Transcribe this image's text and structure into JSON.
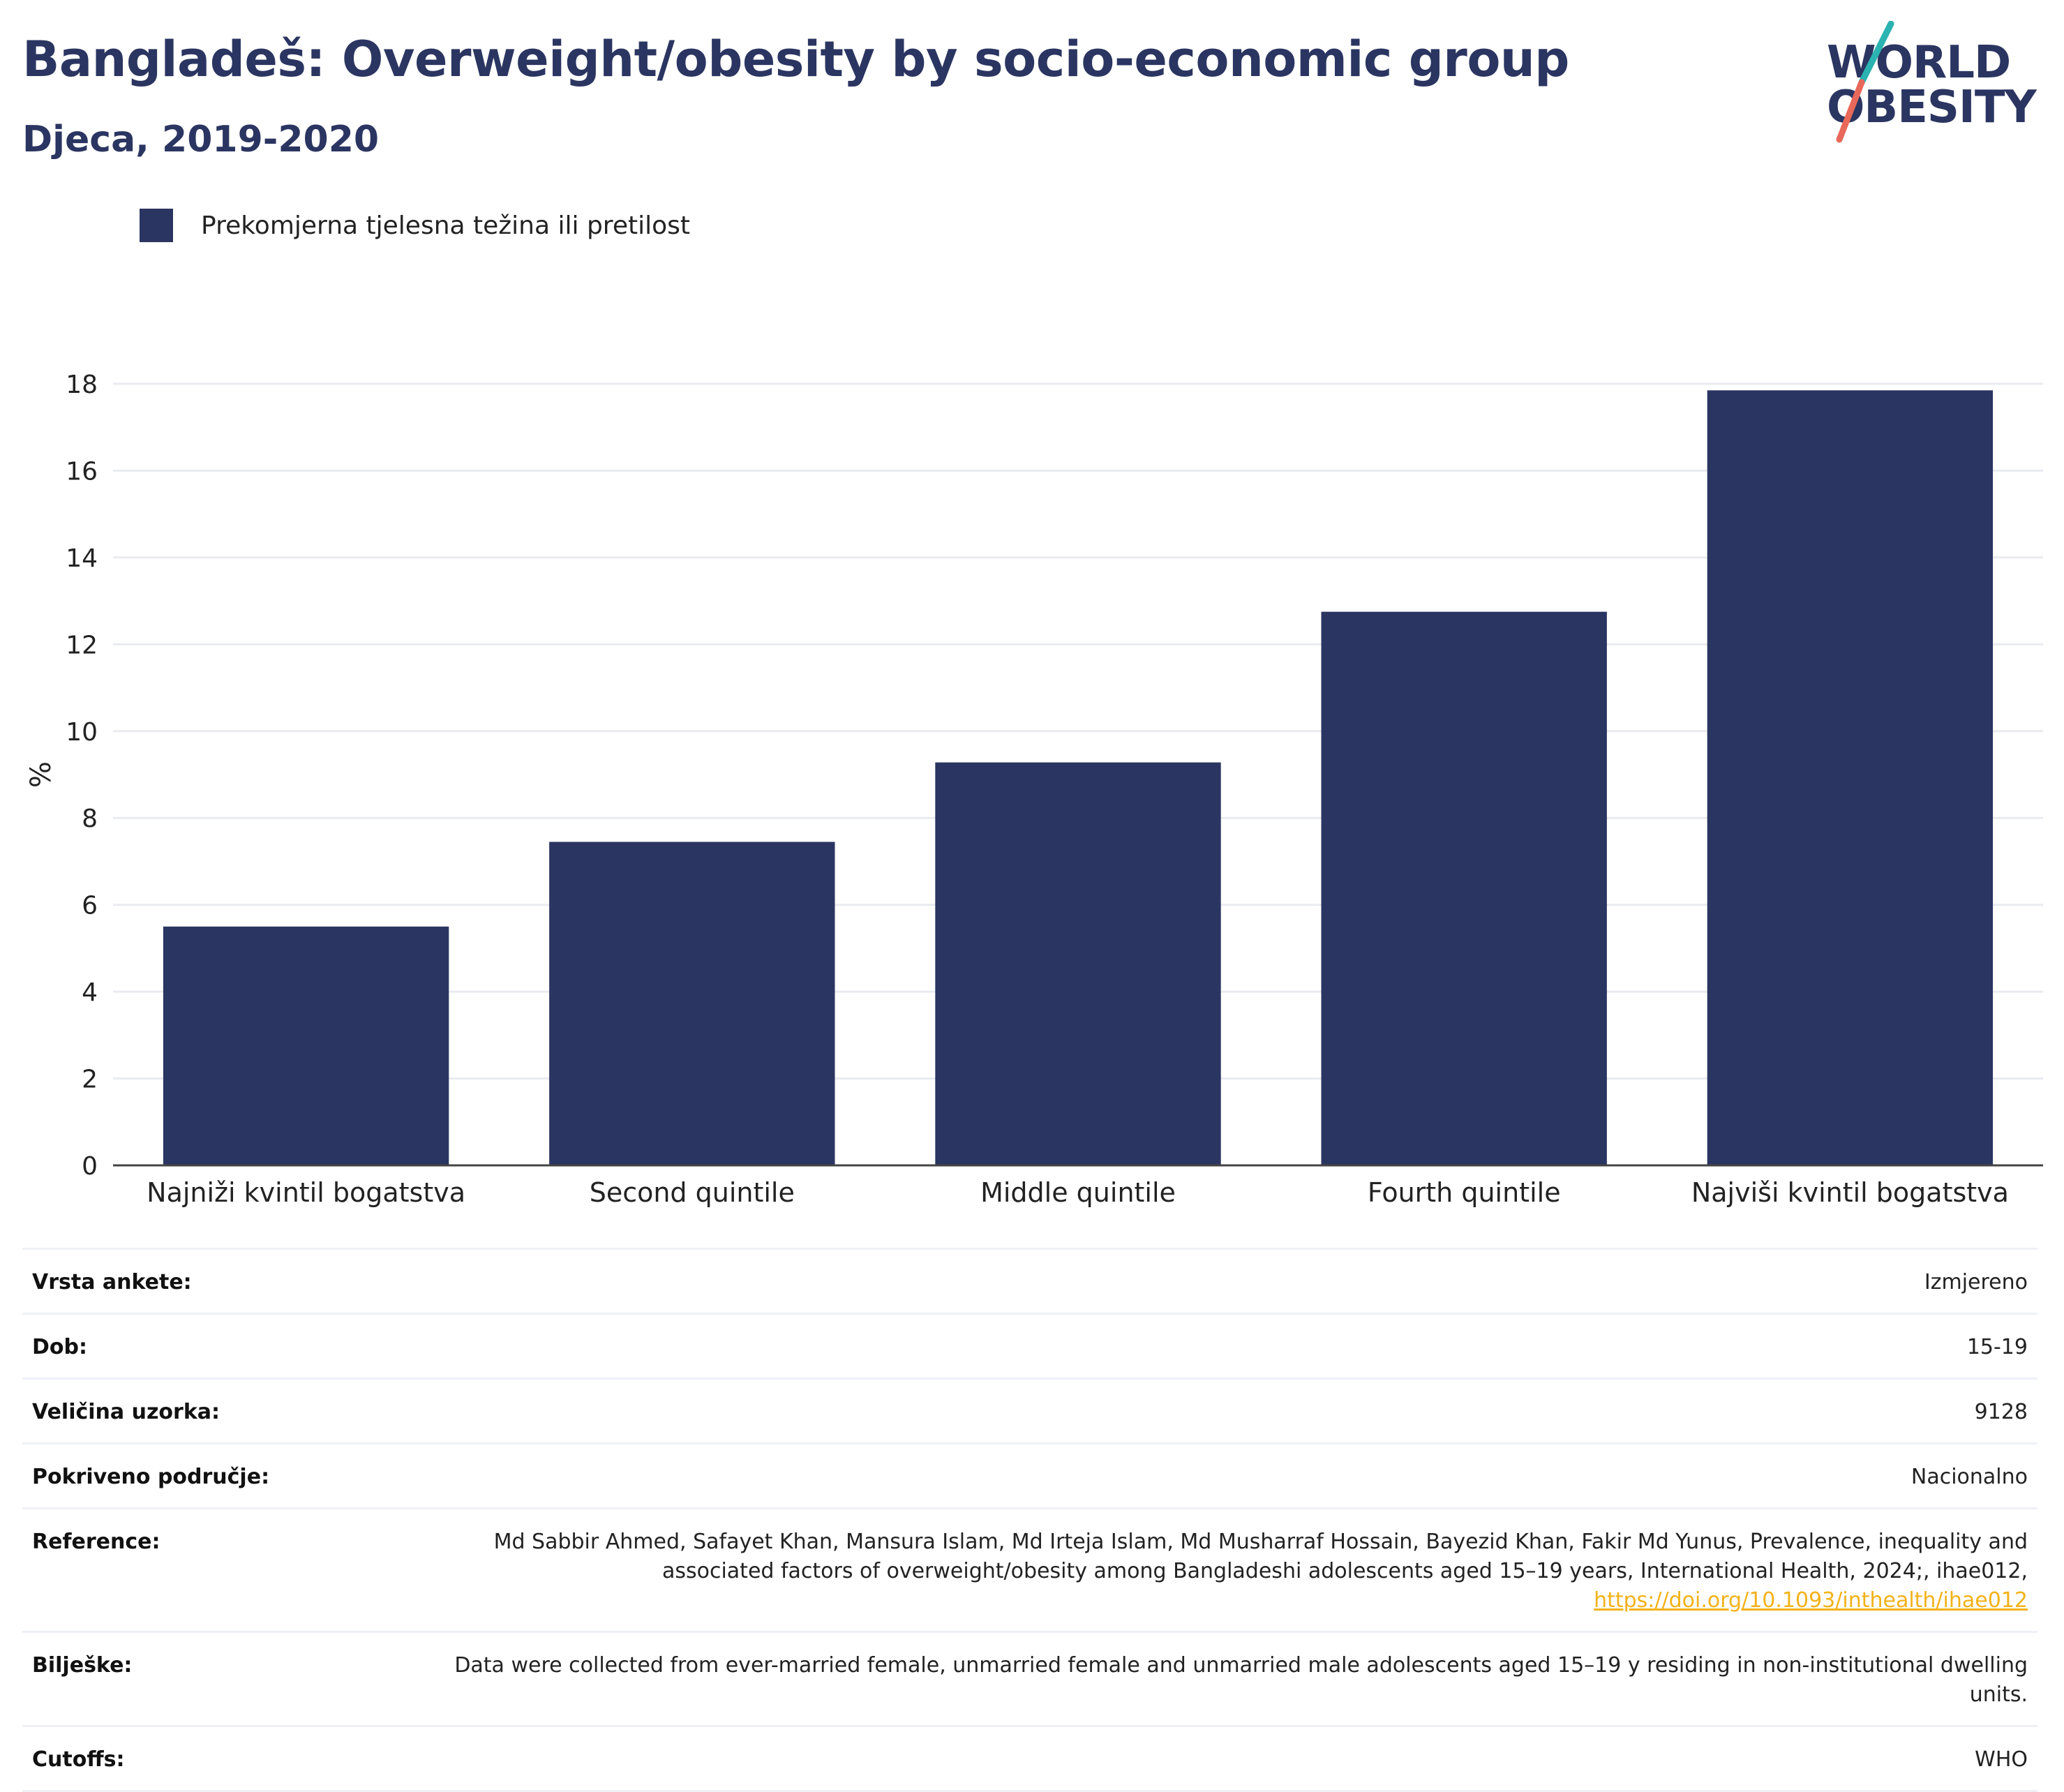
{
  "title": "Bangladeš: Overweight/obesity by socio-economic group",
  "subtitle": "Djeca, 2019-2020",
  "logo": {
    "line1": "WORLD",
    "line2": "OBESITY"
  },
  "colors": {
    "bar": "#2b3561",
    "accent_teal": "#2bb3b1",
    "accent_coral": "#e8685a",
    "link": "#f2b218"
  },
  "chart_data": {
    "type": "bar",
    "categories": [
      "Najniži kvintil bogatstva",
      "Second quintile",
      "Middle quintile",
      "Fourth quintile",
      "Najviši kvintil bogatstva"
    ],
    "series": [
      {
        "name": "Prekomjerna tjelesna težina ili pretilost",
        "values": [
          5.5,
          7.45,
          9.28,
          12.75,
          17.85
        ]
      }
    ],
    "ylabel": "%",
    "ylim": [
      0,
      18
    ],
    "yticks": [
      0,
      2,
      4,
      6,
      8,
      10,
      12,
      14,
      16,
      18
    ],
    "grid": true,
    "legend": "top-left"
  },
  "meta": {
    "survey_type": {
      "label": "Vrsta ankete:",
      "value": "Izmjereno"
    },
    "age": {
      "label": "Dob:",
      "value": "15-19"
    },
    "sample_size": {
      "label": "Veličina uzorka:",
      "value": "9128"
    },
    "area": {
      "label": "Pokriveno područje:",
      "value": "Nacionalno"
    },
    "reference": {
      "label": "Reference:",
      "text": "Md Sabbir Ahmed, Safayet Khan, Mansura Islam, Md Irteja Islam, Md Musharraf Hossain, Bayezid Khan, Fakir Md Yunus, Prevalence, inequality and associated factors of overweight/obesity among Bangladeshi adolescents aged 15–19 years, International Health, 2024;, ihae012,",
      "link": "https://doi.org/10.1093/inthealth/ihae012"
    },
    "notes": {
      "label": "Bilješke:",
      "value": "Data were collected from ever-married female, unmarried female and unmarried male adolescents aged 15–19 y residing in non-institutional dwelling units."
    },
    "cutoffs": {
      "label": "Cutoffs:",
      "value": "WHO"
    }
  }
}
